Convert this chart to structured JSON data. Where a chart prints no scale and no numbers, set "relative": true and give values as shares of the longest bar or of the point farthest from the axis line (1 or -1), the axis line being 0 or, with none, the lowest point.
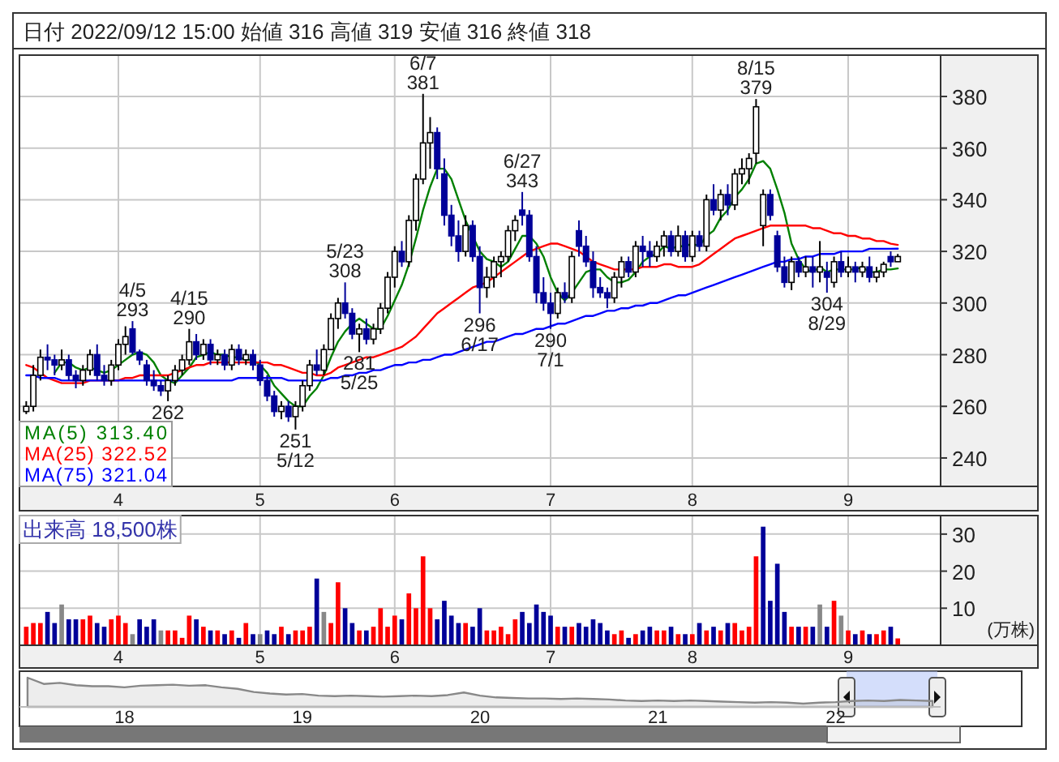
{
  "chart_data": [
    {
      "type": "candlestick",
      "title": "日付 2022/09/12 15:00 始値 316 高値 319 安値 316 終値 318",
      "categories": [
        null,
        null,
        null,
        null,
        null,
        null,
        null,
        null,
        null,
        null,
        null,
        null,
        null,
        "4",
        null,
        null,
        null,
        null,
        null,
        null,
        null,
        null,
        null,
        null,
        null,
        null,
        null,
        null,
        null,
        null,
        null,
        null,
        null,
        "5",
        null,
        null,
        null,
        null,
        null,
        null,
        null,
        null,
        null,
        null,
        null,
        null,
        null,
        null,
        null,
        null,
        null,
        null,
        "6",
        null,
        null,
        null,
        null,
        null,
        null,
        null,
        null,
        null,
        null,
        null,
        null,
        null,
        null,
        null,
        null,
        null,
        null,
        null,
        null,
        null,
        "7",
        null,
        null,
        null,
        null,
        null,
        null,
        null,
        null,
        null,
        null,
        null,
        null,
        null,
        null,
        null,
        null,
        null,
        null,
        null,
        "8",
        null,
        null,
        null,
        null,
        null,
        null,
        null,
        null,
        null,
        null,
        null,
        null,
        null,
        null,
        null,
        null,
        null,
        null,
        null,
        null,
        null,
        "9",
        null,
        null,
        null,
        null,
        null,
        null,
        null
      ],
      "ohlc": [
        [
          258,
          262,
          257,
          260
        ],
        [
          260,
          276,
          258,
          272
        ],
        [
          272,
          282,
          270,
          279
        ],
        [
          279,
          284,
          274,
          278
        ],
        [
          278,
          280,
          272,
          276
        ],
        [
          276,
          282,
          274,
          278
        ],
        [
          278,
          280,
          270,
          272
        ],
        [
          272,
          274,
          267,
          270
        ],
        [
          270,
          276,
          268,
          274
        ],
        [
          274,
          282,
          272,
          280
        ],
        [
          280,
          284,
          270,
          272
        ],
        [
          272,
          276,
          268,
          270
        ],
        [
          270,
          278,
          268,
          276
        ],
        [
          276,
          286,
          274,
          284
        ],
        [
          284,
          291,
          280,
          287
        ],
        [
          290,
          293,
          280,
          281
        ],
        [
          281,
          282,
          276,
          278
        ],
        [
          276,
          278,
          268,
          270
        ],
        [
          270,
          274,
          266,
          268
        ],
        [
          268,
          270,
          264,
          266
        ],
        [
          266,
          272,
          262,
          270
        ],
        [
          270,
          276,
          268,
          274
        ],
        [
          274,
          280,
          272,
          278
        ],
        [
          278,
          290,
          276,
          285
        ],
        [
          285,
          288,
          278,
          280
        ],
        [
          280,
          286,
          278,
          284
        ],
        [
          284,
          286,
          276,
          278
        ],
        [
          278,
          282,
          276,
          280
        ],
        [
          280,
          282,
          274,
          276
        ],
        [
          276,
          284,
          274,
          282
        ],
        [
          282,
          284,
          276,
          278
        ],
        [
          278,
          282,
          276,
          280
        ],
        [
          280,
          282,
          274,
          276
        ],
        [
          276,
          278,
          268,
          270
        ],
        [
          270,
          272,
          262,
          264
        ],
        [
          264,
          266,
          256,
          258
        ],
        [
          258,
          262,
          255,
          260
        ],
        [
          260,
          262,
          254,
          256
        ],
        [
          256,
          262,
          251,
          260
        ],
        [
          260,
          270,
          258,
          268
        ],
        [
          268,
          278,
          266,
          276
        ],
        [
          276,
          282,
          272,
          274
        ],
        [
          274,
          284,
          272,
          282
        ],
        [
          282,
          296,
          282,
          294
        ],
        [
          294,
          302,
          290,
          300
        ],
        [
          300,
          308,
          294,
          296
        ],
        [
          296,
          298,
          286,
          288
        ],
        [
          288,
          292,
          281,
          290
        ],
        [
          290,
          294,
          284,
          286
        ],
        [
          286,
          292,
          284,
          290
        ],
        [
          290,
          300,
          288,
          298
        ],
        [
          298,
          312,
          296,
          310
        ],
        [
          310,
          322,
          306,
          320
        ],
        [
          320,
          324,
          314,
          316
        ],
        [
          316,
          334,
          314,
          332
        ],
        [
          332,
          350,
          328,
          348
        ],
        [
          348,
          381,
          346,
          362
        ],
        [
          362,
          372,
          352,
          366
        ],
        [
          366,
          368,
          348,
          352
        ],
        [
          350,
          356,
          330,
          334
        ],
        [
          334,
          338,
          322,
          326
        ],
        [
          326,
          332,
          316,
          320
        ],
        [
          320,
          334,
          318,
          330
        ],
        [
          330,
          332,
          316,
          318
        ],
        [
          318,
          322,
          296,
          306
        ],
        [
          306,
          314,
          302,
          310
        ],
        [
          310,
          318,
          306,
          316
        ],
        [
          316,
          320,
          310,
          318
        ],
        [
          318,
          330,
          316,
          328
        ],
        [
          328,
          334,
          324,
          332
        ],
        [
          336,
          343,
          330,
          334
        ],
        [
          334,
          336,
          316,
          318
        ],
        [
          318,
          322,
          300,
          304
        ],
        [
          304,
          310,
          297,
          300
        ],
        [
          300,
          304,
          290,
          296
        ],
        [
          296,
          306,
          294,
          304
        ],
        [
          304,
          308,
          300,
          302
        ],
        [
          302,
          320,
          300,
          318
        ],
        [
          328,
          332,
          318,
          322
        ],
        [
          322,
          326,
          314,
          316
        ],
        [
          316,
          320,
          302,
          306
        ],
        [
          306,
          310,
          302,
          304
        ],
        [
          304,
          306,
          298,
          302
        ],
        [
          302,
          312,
          300,
          310
        ],
        [
          310,
          318,
          306,
          316
        ],
        [
          316,
          318,
          310,
          312
        ],
        [
          312,
          324,
          310,
          322
        ],
        [
          322,
          326,
          314,
          320
        ],
        [
          320,
          324,
          314,
          318
        ],
        [
          318,
          324,
          316,
          322
        ],
        [
          322,
          328,
          318,
          326
        ],
        [
          326,
          328,
          318,
          320
        ],
        [
          320,
          330,
          318,
          326
        ],
        [
          326,
          328,
          316,
          318
        ],
        [
          318,
          328,
          316,
          326
        ],
        [
          326,
          328,
          320,
          322
        ],
        [
          322,
          342,
          320,
          340
        ],
        [
          340,
          346,
          334,
          336
        ],
        [
          336,
          344,
          332,
          342
        ],
        [
          342,
          346,
          334,
          338
        ],
        [
          338,
          352,
          336,
          350
        ],
        [
          350,
          356,
          346,
          352
        ],
        [
          352,
          358,
          346,
          356
        ],
        [
          358,
          379,
          354,
          376
        ],
        [
          330,
          344,
          322,
          342
        ],
        [
          342,
          344,
          332,
          334
        ],
        [
          326,
          328,
          312,
          314
        ],
        [
          314,
          318,
          306,
          308
        ],
        [
          308,
          318,
          305,
          316
        ],
        [
          316,
          318,
          310,
          312
        ],
        [
          312,
          318,
          310,
          314
        ],
        [
          314,
          318,
          306,
          312
        ],
        [
          312,
          324,
          308,
          314
        ],
        [
          312,
          316,
          304,
          310
        ],
        [
          308,
          318,
          306,
          316
        ],
        [
          316,
          320,
          310,
          312
        ],
        [
          312,
          318,
          310,
          314
        ],
        [
          314,
          316,
          308,
          312
        ],
        [
          312,
          316,
          310,
          314
        ],
        [
          314,
          318,
          308,
          310
        ],
        [
          310,
          314,
          308,
          312
        ],
        [
          312,
          316,
          310,
          315
        ],
        [
          318,
          320,
          314,
          316
        ],
        [
          316,
          319,
          316,
          318
        ]
      ],
      "colors": [
        "#ffffff",
        "#ffffff",
        "#ffffff",
        "#000099",
        "#000099",
        "#ffffff",
        "#000099",
        "#000099",
        "#ffffff",
        "#ffffff",
        "#000099",
        "#000099",
        "#ffffff",
        "#ffffff",
        "#ffffff",
        "#000099",
        "#000099",
        "#000099",
        "#000099",
        "#000099",
        "#ffffff",
        "#ffffff",
        "#ffffff",
        "#ffffff",
        "#000099",
        "#ffffff",
        "#000099",
        "#ffffff",
        "#000099",
        "#ffffff",
        "#000099",
        "#ffffff",
        "#000099",
        "#000099",
        "#000099",
        "#000099",
        "#ffffff",
        "#000099",
        "#ffffff",
        "#ffffff",
        "#ffffff",
        "#000099",
        "#ffffff",
        "#ffffff",
        "#ffffff",
        "#000099",
        "#000099",
        "#ffffff",
        "#000099",
        "#ffffff",
        "#ffffff",
        "#ffffff",
        "#ffffff",
        "#000099",
        "#ffffff",
        "#ffffff",
        "#ffffff",
        "#ffffff",
        "#000099",
        "#000099",
        "#000099",
        "#000099",
        "#ffffff",
        "#000099",
        "#000099",
        "#ffffff",
        "#ffffff",
        "#ffffff",
        "#ffffff",
        "#ffffff",
        "#000099",
        "#000099",
        "#000099",
        "#000099",
        "#000099",
        "#ffffff",
        "#000099",
        "#ffffff",
        "#000099",
        "#000099",
        "#000099",
        "#000099",
        "#000099",
        "#ffffff",
        "#ffffff",
        "#000099",
        "#ffffff",
        "#000099",
        "#000099",
        "#ffffff",
        "#ffffff",
        "#000099",
        "#ffffff",
        "#000099",
        "#ffffff",
        "#000099",
        "#ffffff",
        "#000099",
        "#ffffff",
        "#000099",
        "#ffffff",
        "#ffffff",
        "#ffffff",
        "#ffffff",
        "#ffffff",
        "#000099",
        "#000099",
        "#000099",
        "#ffffff",
        "#000099",
        "#ffffff",
        "#000099",
        "#ffffff",
        "#000099",
        "#ffffff",
        "#000099",
        "#ffffff",
        "#000099",
        "#ffffff",
        "#000099",
        "#ffffff",
        "#ffffff",
        "#000099",
        "#ffffff"
      ],
      "series": [
        {
          "name": "MA(5)  313.40",
          "color": "#008000",
          "type": "line",
          "values": [
            null,
            null,
            null,
            null,
            273,
            277,
            277,
            275,
            274,
            275,
            274,
            273,
            274,
            276,
            278,
            280,
            281,
            280,
            277,
            272,
            270,
            269,
            272,
            275,
            279,
            280,
            281,
            280,
            280,
            279,
            279,
            278,
            278,
            276,
            273,
            268,
            265,
            262,
            260,
            260,
            264,
            267,
            272,
            279,
            285,
            289,
            292,
            294,
            292,
            290,
            290,
            295,
            301,
            307,
            315,
            325,
            336,
            345,
            352,
            352,
            348,
            340,
            332,
            326,
            320,
            317,
            316,
            314,
            316,
            321,
            326,
            326,
            323,
            318,
            310,
            304,
            301,
            304,
            308,
            312,
            313,
            313,
            310,
            308,
            308,
            309,
            312,
            316,
            318,
            319,
            322,
            321,
            322,
            322,
            323,
            322,
            326,
            328,
            333,
            336,
            341,
            344,
            348,
            354,
            355,
            352,
            344,
            335,
            323,
            317,
            313,
            312,
            314,
            312,
            313,
            313,
            313,
            313,
            314,
            312,
            312,
            313,
            313,
            313.4
          ]
        },
        {
          "name": "MA(25) 322.52",
          "color": "#ff0000",
          "type": "line",
          "values": [
            276,
            275,
            273,
            271,
            270,
            269,
            269,
            269,
            269,
            270,
            270,
            270,
            270,
            270,
            271,
            271,
            272,
            272,
            272,
            272,
            272,
            273,
            274,
            275,
            276,
            276,
            277,
            277,
            277,
            277,
            277,
            277,
            277,
            277,
            277,
            276,
            276,
            275,
            274,
            273,
            273,
            272,
            272,
            273,
            275,
            276,
            277,
            278,
            279,
            279,
            280,
            281,
            282,
            283,
            285,
            287,
            290,
            293,
            296,
            298,
            300,
            302,
            304,
            306,
            307,
            308,
            310,
            312,
            314,
            316,
            318,
            320,
            321,
            322,
            323,
            323,
            322,
            321,
            320,
            318,
            316,
            315,
            314,
            313,
            313,
            313,
            313,
            314,
            314,
            314,
            315,
            315,
            314,
            314,
            314,
            315,
            317,
            319,
            321,
            323,
            325,
            326,
            327,
            328,
            329,
            330,
            330,
            330,
            330,
            330,
            330,
            329,
            329,
            328,
            327,
            327,
            326,
            326,
            325,
            325,
            324,
            324,
            323,
            322.52
          ]
        },
        {
          "name": "MA(75) 321.04",
          "color": "#0000ff",
          "type": "line",
          "values": [
            272,
            272,
            271,
            271,
            271,
            270,
            270,
            270,
            270,
            270,
            270,
            270,
            270,
            270,
            270,
            270,
            270,
            270,
            270,
            270,
            270,
            270,
            270,
            270,
            270,
            270,
            270,
            270,
            270,
            270,
            271,
            271,
            271,
            271,
            271,
            271,
            271,
            270,
            270,
            270,
            270,
            270,
            270,
            271,
            271,
            272,
            272,
            273,
            273,
            274,
            274,
            275,
            276,
            276,
            277,
            277,
            278,
            278,
            279,
            280,
            280,
            281,
            282,
            283,
            284,
            285,
            285,
            286,
            287,
            288,
            288,
            289,
            290,
            290,
            291,
            292,
            292,
            293,
            294,
            295,
            295,
            296,
            297,
            297,
            298,
            298,
            299,
            299,
            300,
            300,
            301,
            302,
            303,
            303,
            304,
            305,
            306,
            307,
            308,
            309,
            310,
            311,
            312,
            313,
            314,
            315,
            316,
            316,
            317,
            317,
            318,
            318,
            319,
            319,
            319,
            320,
            320,
            320,
            320,
            321,
            321,
            321,
            321,
            321.04
          ]
        }
      ],
      "ylim": [
        229,
        396
      ],
      "yticks": [
        240,
        260,
        280,
        300,
        320,
        340,
        360,
        380
      ],
      "grid": true,
      "legend": "bottom left",
      "annotations": [
        {
          "text": "4/5\n293",
          "y": 293
        },
        {
          "text": "4/15\n290",
          "y": 290
        },
        {
          "text": "262",
          "y": 262
        },
        {
          "text": "251\n5/12",
          "y": 251
        },
        {
          "text": "5/23\n308",
          "y": 308
        },
        {
          "text": "281\n5/25",
          "y": 281
        },
        {
          "text": "6/7\n381",
          "y": 381
        },
        {
          "text": "296\n6/17",
          "y": 296
        },
        {
          "text": "6/27\n343",
          "y": 343
        },
        {
          "text": "290\n7/1",
          "y": 290
        },
        {
          "text": "8/15\n379",
          "y": 379
        },
        {
          "text": "304\n8/29",
          "y": 304
        }
      ]
    },
    {
      "type": "bar",
      "title": "出来高 18,500株",
      "ylabel": "(万株)",
      "categories": [
        null,
        null,
        null,
        null,
        null,
        null,
        null,
        null,
        null,
        null,
        null,
        null,
        null,
        "4",
        null,
        null,
        null,
        null,
        null,
        null,
        null,
        null,
        null,
        null,
        null,
        null,
        null,
        null,
        null,
        null,
        null,
        null,
        null,
        "5",
        null,
        null,
        null,
        null,
        null,
        null,
        null,
        null,
        null,
        null,
        null,
        null,
        null,
        null,
        null,
        null,
        null,
        null,
        "6",
        null,
        null,
        null,
        null,
        null,
        null,
        null,
        null,
        null,
        null,
        null,
        null,
        null,
        null,
        null,
        null,
        null,
        null,
        null,
        null,
        null,
        "7",
        null,
        null,
        null,
        null,
        null,
        null,
        null,
        null,
        null,
        null,
        null,
        null,
        null,
        null,
        null,
        null,
        null,
        null,
        null,
        "8",
        null,
        null,
        null,
        null,
        null,
        null,
        null,
        null,
        null,
        null,
        null,
        null,
        null,
        null,
        null,
        null,
        null,
        null,
        null,
        null,
        null,
        "9",
        null,
        null,
        null,
        null,
        null,
        null,
        null
      ],
      "values": [
        5,
        6,
        6,
        9,
        6,
        11,
        7,
        7,
        7,
        8,
        6,
        5,
        7,
        8,
        6,
        3,
        7,
        5,
        7,
        4,
        4,
        4,
        2,
        8,
        7,
        5,
        4,
        4,
        3,
        4,
        2,
        6,
        3,
        3,
        4,
        3,
        5,
        3,
        4,
        4,
        5,
        18,
        9,
        6,
        17,
        10,
        6,
        4,
        4,
        5,
        10,
        5,
        8,
        7,
        14,
        10,
        24,
        10,
        7,
        12,
        8,
        6,
        6,
        5,
        10,
        4,
        4,
        5,
        3,
        7,
        9,
        6,
        11,
        9,
        8,
        5,
        5,
        5,
        6,
        5,
        7,
        6,
        4,
        3,
        4,
        2,
        3,
        4,
        5,
        4,
        4,
        5,
        3,
        3,
        3,
        6,
        4,
        5,
        4,
        6,
        6,
        4,
        5,
        24,
        32,
        12,
        22,
        9,
        5,
        5,
        5,
        5,
        11,
        5,
        12,
        8,
        4,
        3,
        4,
        3,
        3,
        4,
        5,
        1.85
      ],
      "colors": [
        "#ff0000",
        "#ff0000",
        "#ff0000",
        "#000099",
        "#000099",
        "#888888",
        "#000099",
        "#000099",
        "#ff0000",
        "#ff0000",
        "#000099",
        "#000099",
        "#ff0000",
        "#ff0000",
        "#ff0000",
        "#888888",
        "#000099",
        "#000099",
        "#000099",
        "#888888",
        "#ff0000",
        "#ff0000",
        "#ff0000",
        "#ff0000",
        "#000099",
        "#ff0000",
        "#000099",
        "#ff0000",
        "#000099",
        "#ff0000",
        "#000099",
        "#ff0000",
        "#000099",
        "#888888",
        "#000099",
        "#000099",
        "#ff0000",
        "#000099",
        "#ff0000",
        "#ff0000",
        "#ff0000",
        "#000099",
        "#888888",
        "#ff0000",
        "#ff0000",
        "#000099",
        "#000099",
        "#ff0000",
        "#000099",
        "#ff0000",
        "#ff0000",
        "#ff0000",
        "#ff0000",
        "#000099",
        "#ff0000",
        "#ff0000",
        "#ff0000",
        "#ff0000",
        "#000099",
        "#000099",
        "#000099",
        "#000099",
        "#ff0000",
        "#000099",
        "#000099",
        "#ff0000",
        "#ff0000",
        "#ff0000",
        "#ff0000",
        "#ff0000",
        "#000099",
        "#000099",
        "#000099",
        "#000099",
        "#000099",
        "#ff0000",
        "#000099",
        "#ff0000",
        "#000099",
        "#000099",
        "#000099",
        "#000099",
        "#000099",
        "#ff0000",
        "#ff0000",
        "#000099",
        "#ff0000",
        "#000099",
        "#000099",
        "#ff0000",
        "#ff0000",
        "#000099",
        "#ff0000",
        "#000099",
        "#ff0000",
        "#000099",
        "#ff0000",
        "#000099",
        "#ff0000",
        "#000099",
        "#ff0000",
        "#ff0000",
        "#ff0000",
        "#ff0000",
        "#000099",
        "#000099",
        "#000099",
        "#000099",
        "#ff0000",
        "#000099",
        "#ff0000",
        "#000099",
        "#888888",
        "#000099",
        "#ff0000",
        "#888888",
        "#ff0000",
        "#000099",
        "#ff0000",
        "#000099",
        "#ff0000",
        "#ff0000",
        "#000099",
        "#ff0000"
      ],
      "ylim": [
        0,
        35
      ],
      "yticks": [
        10,
        20,
        30
      ],
      "grid": true
    },
    {
      "type": "area",
      "relative": true,
      "color": "#888888",
      "categories": [
        null,
        null,
        null,
        null,
        null,
        null,
        "18",
        null,
        null,
        null,
        null,
        null,
        null,
        null,
        null,
        null,
        null,
        "19",
        null,
        null,
        null,
        null,
        null,
        null,
        null,
        null,
        null,
        null,
        "20",
        null,
        null,
        null,
        null,
        null,
        null,
        null,
        null,
        null,
        null,
        "21",
        null,
        null,
        null,
        null,
        null,
        null,
        null,
        null,
        null,
        null,
        "22",
        null,
        null,
        null,
        null,
        null,
        null
      ],
      "values": [
        1.0,
        0.76,
        0.8,
        0.71,
        0.67,
        0.67,
        0.63,
        0.69,
        0.71,
        0.73,
        0.69,
        0.71,
        0.63,
        0.57,
        0.45,
        0.39,
        0.35,
        0.37,
        0.31,
        0.29,
        0.31,
        0.29,
        0.27,
        0.29,
        0.31,
        0.29,
        0.33,
        0.43,
        0.31,
        0.24,
        0.22,
        0.2,
        0.2,
        0.18,
        0.2,
        0.18,
        0.16,
        0.12,
        0.1,
        0.12,
        0.1,
        0.12,
        0.1,
        0.08,
        0.06,
        0.04,
        0.06,
        0.04,
        0.0,
        0.04,
        0.06,
        0.1,
        0.12,
        0.1,
        0.14,
        0.12,
        0.1
      ]
    }
  ]
}
